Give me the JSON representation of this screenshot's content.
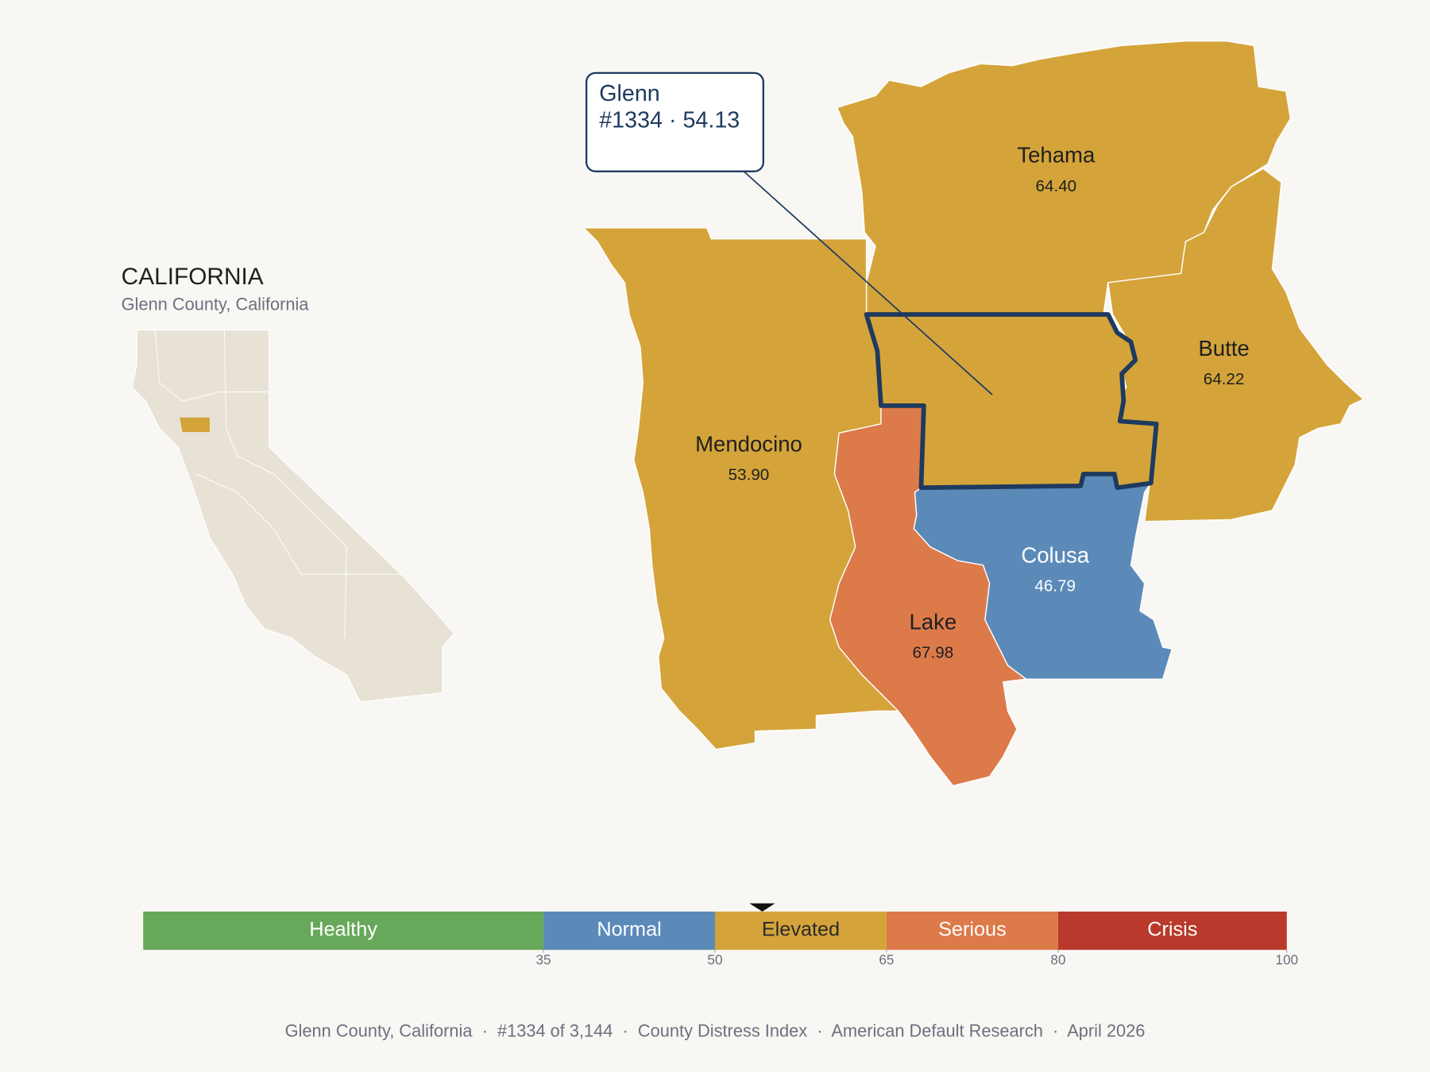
{
  "title": "CALIFORNIA",
  "subtitle": "Glenn County, California",
  "callout": {
    "name": "Glenn",
    "detail": "#1334 · 54.13"
  },
  "selected": {
    "name": "Glenn",
    "value": 54.13
  },
  "counties": [
    {
      "name": "Tehama",
      "value": 64.4,
      "value_label": "64.40",
      "label_color": "#1f1f1f"
    },
    {
      "name": "Butte",
      "value": 64.22,
      "value_label": "64.22",
      "label_color": "#1f1f1f"
    },
    {
      "name": "Mendocino",
      "value": 53.9,
      "value_label": "53.90",
      "label_color": "#1f1f1f"
    },
    {
      "name": "Colusa",
      "value": 46.79,
      "value_label": "46.79",
      "label_color": "#ffffff"
    },
    {
      "name": "Lake",
      "value": 67.98,
      "value_label": "67.98",
      "label_color": "#1f1f1f"
    }
  ],
  "scale": {
    "lim": [
      0,
      100
    ],
    "ticks": [
      35,
      50,
      65,
      80,
      100
    ],
    "bands": [
      {
        "name": "Healthy",
        "from": 0,
        "to": 35,
        "color": "#68a85a",
        "text_color": "#ffffff"
      },
      {
        "name": "Normal",
        "from": 35,
        "to": 50,
        "color": "#5b8ab9",
        "text_color": "#ffffff"
      },
      {
        "name": "Elevated",
        "from": 50,
        "to": 65,
        "color": "#d4a43a",
        "text_color": "#2a2a2a"
      },
      {
        "name": "Serious",
        "from": 65,
        "to": 80,
        "color": "#dc7a4a",
        "text_color": "#ffffff"
      },
      {
        "name": "Crisis",
        "from": 80,
        "to": 100,
        "color": "#b93a2c",
        "text_color": "#ffffff"
      }
    ]
  },
  "footer": "Glenn County, California  ·  #1334 of 3,144  ·  County Distress Index  ·  American Default Research  ·  April 2026"
}
